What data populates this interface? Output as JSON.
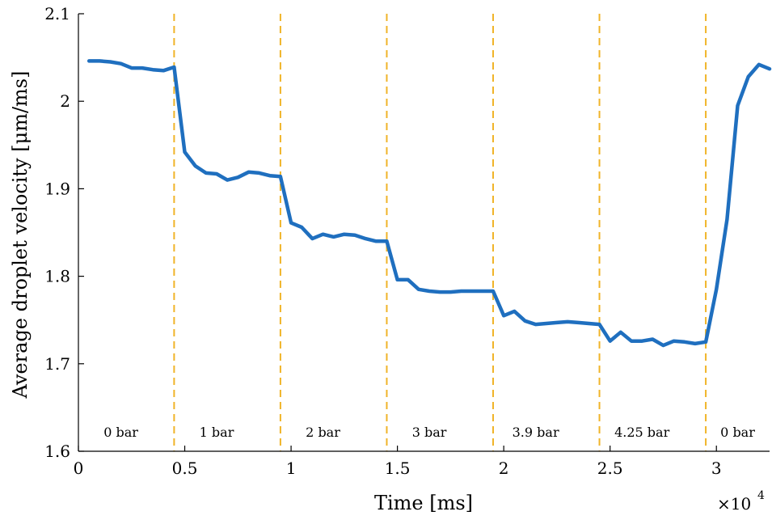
{
  "chart_data": {
    "type": "line",
    "xlabel": "Time [ms]",
    "ylabel": "Average droplet velocity [μm/ms]",
    "x_multiplier_label": "×10",
    "x_multiplier_exponent": "4",
    "xlim": [
      0,
      32500
    ],
    "ylim": [
      1.6,
      2.1
    ],
    "x_ticks": [
      0,
      5000,
      10000,
      15000,
      20000,
      25000,
      30000
    ],
    "x_tick_labels": [
      "0",
      "0.5",
      "1",
      "1.5",
      "2",
      "2.5",
      "3"
    ],
    "y_ticks": [
      1.6,
      1.7,
      1.8,
      1.9,
      2.0,
      2.1
    ],
    "y_tick_labels": [
      "1.6",
      "1.7",
      "1.8",
      "1.9",
      "2",
      "2.1"
    ],
    "grid": false,
    "line_color": "#1f6fbf",
    "divider_color": "#f0b429",
    "dividers": [
      4500,
      9500,
      14500,
      19500,
      24500,
      29500
    ],
    "regions": [
      {
        "label": "0 bar",
        "x": 2000
      },
      {
        "label": "1 bar",
        "x": 6500
      },
      {
        "label": "2 bar",
        "x": 11500
      },
      {
        "label": "3 bar",
        "x": 16500
      },
      {
        "label": "3.9 bar",
        "x": 21500
      },
      {
        "label": "4.25 bar",
        "x": 26500
      },
      {
        "label": "0 bar",
        "x": 31000
      }
    ],
    "series": [
      {
        "x": [
          500,
          1000,
          1500,
          2000,
          2500,
          3000,
          3500,
          4000,
          4500,
          5000,
          5500,
          6000,
          6500,
          7000,
          7500,
          8000,
          8500,
          9000,
          9500,
          10000,
          10500,
          11000,
          11500,
          12000,
          12500,
          13000,
          13500,
          14000,
          14500,
          15000,
          15500,
          16000,
          16500,
          17000,
          17500,
          18000,
          18500,
          19000,
          19500,
          20000,
          20500,
          21000,
          21500,
          22000,
          22500,
          23000,
          23500,
          24000,
          24500,
          25000,
          25500,
          26000,
          26500,
          27000,
          27500,
          28000,
          28500,
          29000,
          29500,
          30000,
          30500,
          31000,
          31500,
          32000,
          32500
        ],
        "y": [
          2.046,
          2.046,
          2.045,
          2.043,
          2.038,
          2.038,
          2.036,
          2.035,
          2.039,
          1.942,
          1.926,
          1.918,
          1.917,
          1.91,
          1.913,
          1.919,
          1.918,
          1.915,
          1.914,
          1.861,
          1.856,
          1.843,
          1.848,
          1.845,
          1.848,
          1.847,
          1.843,
          1.84,
          1.84,
          1.796,
          1.796,
          1.785,
          1.783,
          1.782,
          1.782,
          1.783,
          1.783,
          1.783,
          1.783,
          1.755,
          1.76,
          1.749,
          1.745,
          1.746,
          1.747,
          1.748,
          1.747,
          1.746,
          1.745,
          1.726,
          1.736,
          1.726,
          1.726,
          1.728,
          1.721,
          1.726,
          1.725,
          1.723,
          1.725,
          1.785,
          1.865,
          1.995,
          2.028,
          2.042,
          2.037
        ]
      }
    ]
  }
}
